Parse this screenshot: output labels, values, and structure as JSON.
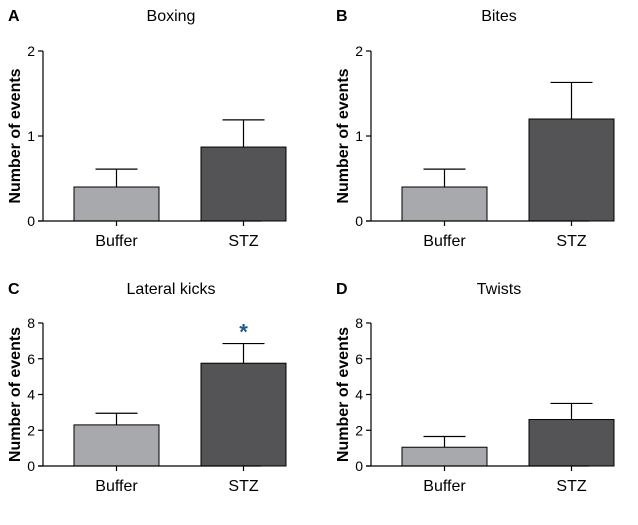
{
  "colors": {
    "buffer": "#a8a9ad",
    "stz": "#545456",
    "significance": "#1f5a8f"
  },
  "chart_data": [
    {
      "type": "bar",
      "panel": "A",
      "title": "Boxing",
      "ylabel": "Number of events",
      "xlabel": "",
      "categories": [
        "Buffer",
        "STZ"
      ],
      "values": [
        0.4,
        0.87
      ],
      "error": [
        0.21,
        0.32
      ],
      "ylim": [
        0,
        2
      ],
      "yticks": [
        "0",
        "1",
        "2"
      ],
      "significance": [
        "",
        ""
      ]
    },
    {
      "type": "bar",
      "panel": "B",
      "title": "Bites",
      "ylabel": "Number of events",
      "xlabel": "",
      "categories": [
        "Buffer",
        "STZ"
      ],
      "values": [
        0.4,
        1.2
      ],
      "error": [
        0.21,
        0.43
      ],
      "ylim": [
        0,
        2
      ],
      "yticks": [
        "0",
        "1",
        "2"
      ],
      "significance": [
        "",
        ""
      ]
    },
    {
      "type": "bar",
      "panel": "C",
      "title": "Lateral kicks",
      "ylabel": "Number of events",
      "xlabel": "",
      "categories": [
        "Buffer",
        "STZ"
      ],
      "values": [
        2.3,
        5.75
      ],
      "error": [
        0.65,
        1.1
      ],
      "ylim": [
        0,
        8
      ],
      "yticks": [
        "0",
        "2",
        "4",
        "6",
        "8"
      ],
      "significance": [
        "",
        "*"
      ]
    },
    {
      "type": "bar",
      "panel": "D",
      "title": "Twists",
      "ylabel": "Number of events",
      "xlabel": "",
      "categories": [
        "Buffer",
        "STZ"
      ],
      "values": [
        1.05,
        2.6
      ],
      "error": [
        0.6,
        0.9
      ],
      "ylim": [
        0,
        8
      ],
      "yticks": [
        "0",
        "2",
        "4",
        "6",
        "8"
      ],
      "significance": [
        "",
        ""
      ]
    }
  ]
}
